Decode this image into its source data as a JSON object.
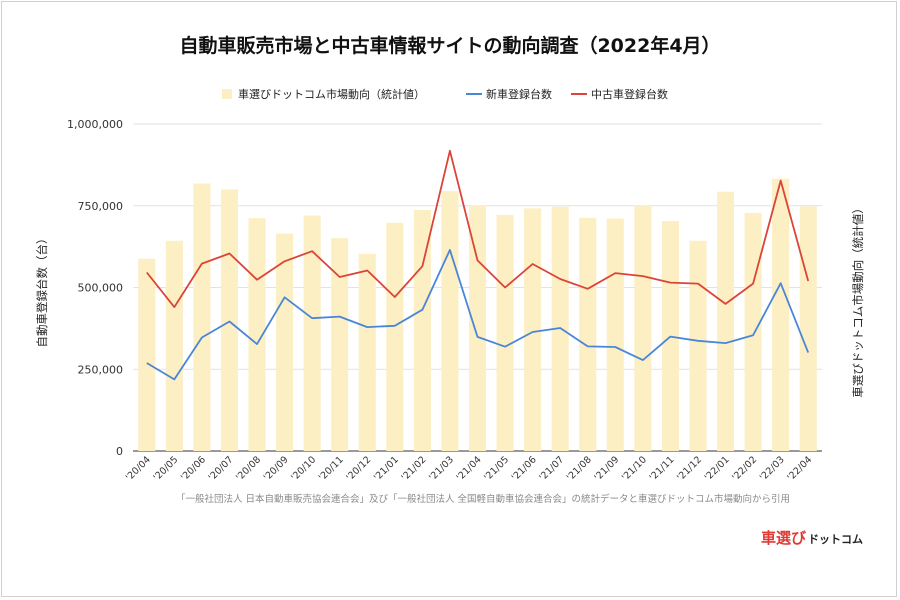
{
  "chart_data": {
    "type": "bar+line",
    "title": "自動車販売市場と中古車情報サイトの動向調査（2022年4月）",
    "ylabel_left": "自動車登録台数（台）",
    "ylabel_right": "車選びドットコム市場動向（統計値）",
    "ylim_left": [
      0,
      1000000
    ],
    "yticks_left": [
      "0",
      "250,000",
      "500,000",
      "750,000",
      "1,000,000"
    ],
    "legend_position": "top",
    "grid": true,
    "categories": [
      "'20/04",
      "'20/05",
      "'20/06",
      "'20/07",
      "'20/08",
      "'20/09",
      "'20/10",
      "'20/11",
      "'20/12",
      "'21/01",
      "'21/02",
      "'21/03",
      "'21/04",
      "'21/05",
      "'21/06",
      "'21/07",
      "'21/08",
      "'21/09",
      "'21/10",
      "'21/11",
      "'21/12",
      "'22/01",
      "'22/02",
      "'22/03",
      "'22/04"
    ],
    "series": [
      {
        "name": "車選びドットコム市場動向（統計値）",
        "type": "bar",
        "color": "#fcefc4",
        "values": [
          588000,
          643000,
          818000,
          800000,
          712000,
          665000,
          720000,
          651000,
          603000,
          698000,
          737000,
          795000,
          752000,
          722000,
          742000,
          747000,
          713000,
          711000,
          752000,
          703000,
          643000,
          793000,
          728000,
          833000,
          748000
        ]
      },
      {
        "name": "新車登録台数",
        "type": "line",
        "color": "#4a86d8",
        "values": [
          269000,
          219000,
          347000,
          396000,
          327000,
          470000,
          406000,
          411000,
          379000,
          383000,
          432000,
          615000,
          349000,
          319000,
          364000,
          376000,
          320000,
          318000,
          278000,
          350000,
          337000,
          330000,
          354000,
          513000,
          301000
        ]
      },
      {
        "name": "中古車登録台数",
        "type": "line",
        "color": "#db4437",
        "values": [
          546000,
          440000,
          573000,
          604000,
          524000,
          580000,
          611000,
          532000,
          552000,
          471000,
          565000,
          918000,
          583000,
          500000,
          572000,
          526000,
          496000,
          544000,
          535000,
          515000,
          512000,
          450000,
          512000,
          827000,
          520000
        ]
      }
    ]
  },
  "footnote": "「一般社団法人 日本自動車販売協会連合会」及び「一般社団法人 全国軽自動車協会連合会」の統計データと車選びドットコム市場動向から引用",
  "logo": {
    "main": "車選び",
    "sub": "ドットコム"
  }
}
